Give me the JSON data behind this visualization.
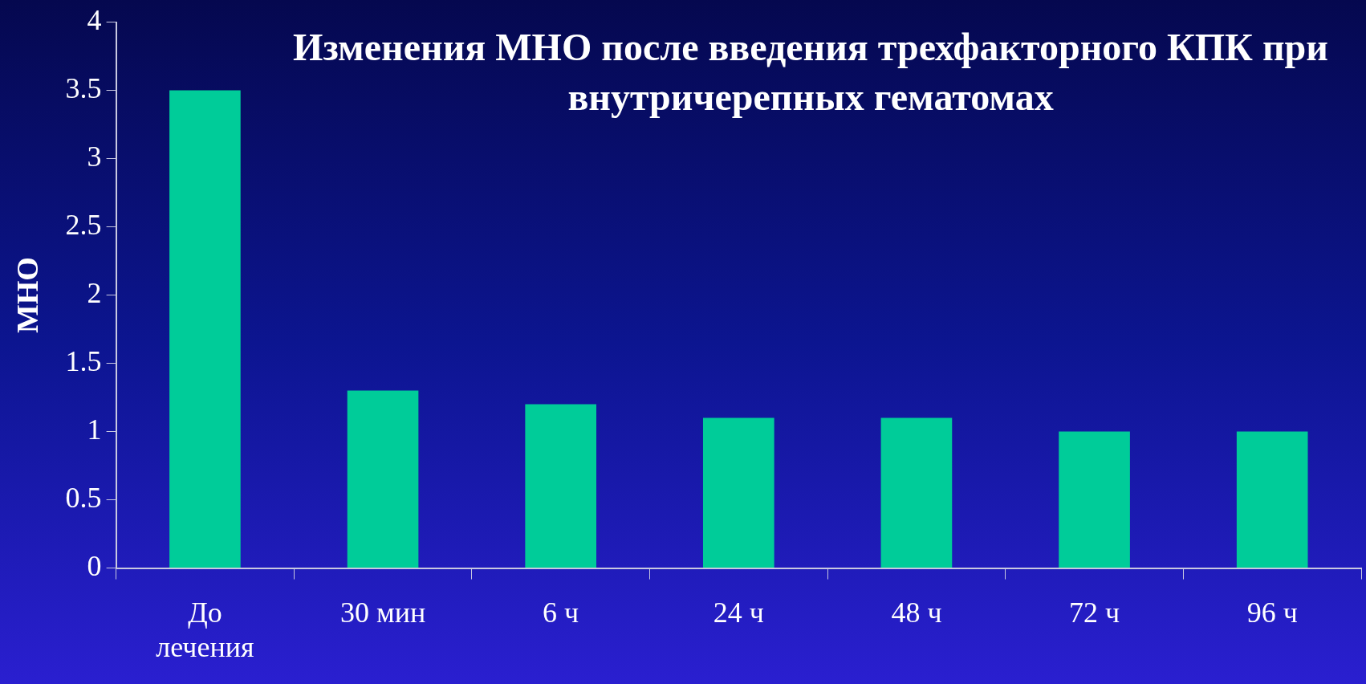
{
  "chart_data": {
    "type": "bar",
    "title": "Изменения МНО после введения трехфакторного КПК при внутричерепных гематомах",
    "ylabel": "МНО",
    "categories": [
      "До лечения",
      "30 мин",
      "6 ч",
      "24 ч",
      "48 ч",
      "72 ч",
      "96 ч"
    ],
    "values": [
      3.5,
      1.3,
      1.2,
      1.1,
      1.1,
      1.0,
      1.0
    ],
    "color": "#00cc99",
    "ylim": [
      0,
      4
    ],
    "yticks": [
      0,
      0.5,
      1,
      1.5,
      2,
      2.5,
      3,
      3.5,
      4
    ],
    "grid": false,
    "legend": false
  }
}
